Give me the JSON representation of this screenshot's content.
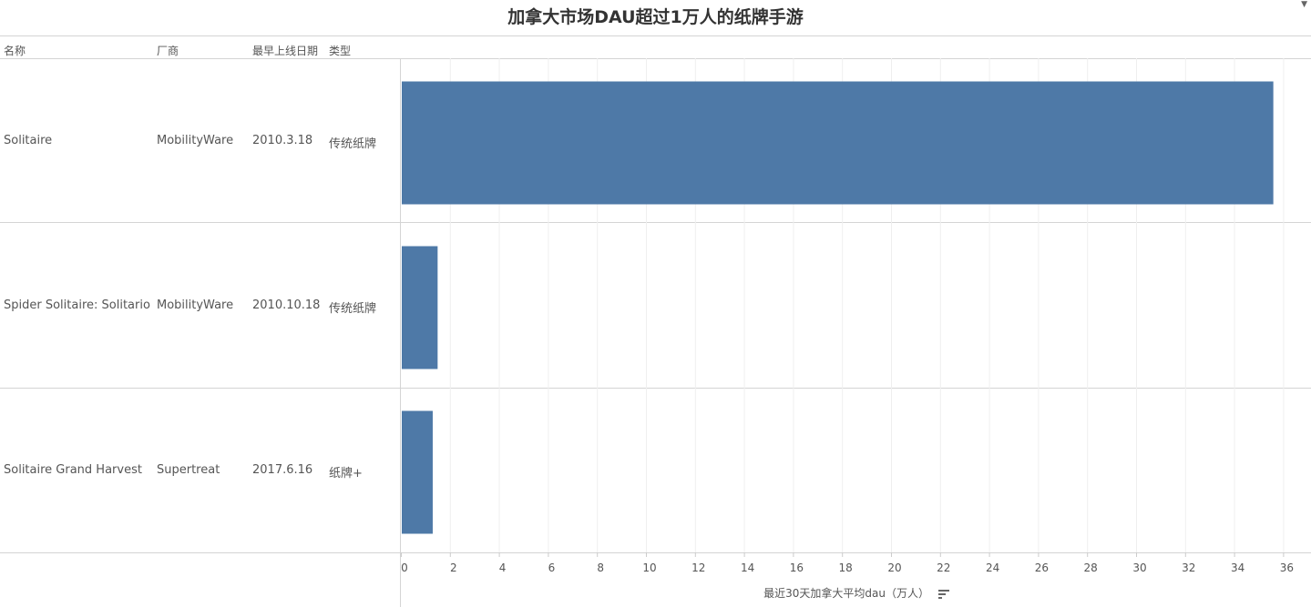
{
  "header": {
    "title": "加拿大市场DAU超过1万人的纸牌手游"
  },
  "columns": {
    "name": "名称",
    "vendor": "厂商",
    "date": "最早上线日期",
    "type": "类型"
  },
  "rows": [
    {
      "name": "Solitaire",
      "vendor": "MobilityWare",
      "date": "2010.3.18",
      "type": "传统纸牌"
    },
    {
      "name": "Spider Solitaire: Solitario",
      "vendor": "MobilityWare",
      "date": "2010.10.18",
      "type": "传统纸牌"
    },
    {
      "name": "Solitaire Grand Harvest",
      "vendor": "Supertreat",
      "date": "2017.6.16",
      "type": "纸牌+"
    }
  ],
  "chart_data": {
    "type": "bar",
    "orientation": "horizontal",
    "categories": [
      "Solitaire",
      "Spider Solitaire: Solitario",
      "Solitaire Grand Harvest"
    ],
    "values": [
      35.6,
      1.5,
      1.3
    ],
    "xlabel": "最近30天加拿大平均dau（万人）",
    "xlim": [
      0,
      38
    ],
    "ticks": [
      0,
      2,
      4,
      6,
      8,
      10,
      12,
      14,
      16,
      18,
      20,
      22,
      24,
      26,
      28,
      30,
      32,
      34,
      36
    ],
    "grid": true,
    "bar_color": "#4e79a7"
  },
  "icons": {
    "sort": "sort-descending-icon",
    "menu": "dropdown-arrow-icon"
  }
}
